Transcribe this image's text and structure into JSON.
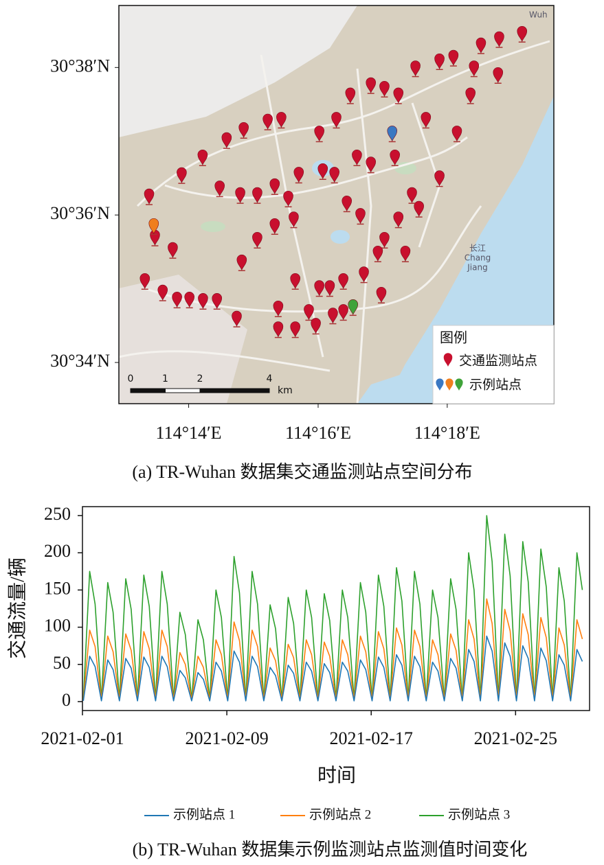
{
  "chart_data": [
    {
      "type": "map",
      "caption": "(a) TR-Wuhan 数据集交通监测站点空间分布",
      "xlim": [
        114.2153,
        114.3275
      ],
      "ylim": [
        30.5574,
        30.6473
      ],
      "xticks": [
        {
          "value": 114.2333,
          "label": "114°14′E"
        },
        {
          "value": 114.2667,
          "label": "114°16′E"
        },
        {
          "value": 114.3,
          "label": "114°18′E"
        }
      ],
      "yticks": [
        {
          "value": 30.6333,
          "label": "30°38′N"
        },
        {
          "value": 30.6,
          "label": "30°36′N"
        },
        {
          "value": 30.5667,
          "label": "30°34′N"
        }
      ],
      "legend_title": "图例",
      "map_labels": [
        "Wuh",
        "长江",
        "Chang",
        "Jiang"
      ],
      "scale_bar": {
        "ticks": [
          0,
          1,
          2,
          4
        ],
        "unit": "km"
      },
      "series": [
        {
          "name": "交通监测站点",
          "color": "#c8102e",
          "x": [
            114.2231,
            114.2246,
            114.2292,
            114.222,
            114.2266,
            114.2303,
            114.2335,
            114.237,
            114.2406,
            114.2315,
            114.2369,
            114.2431,
            114.2475,
            114.2537,
            114.2572,
            114.2413,
            114.2466,
            114.251,
            114.2555,
            114.259,
            114.2617,
            114.2679,
            114.2709,
            114.2741,
            114.2776,
            114.267,
            114.2714,
            114.275,
            114.2803,
            114.2838,
            114.2874,
            114.2918,
            114.298,
            114.3016,
            114.3087,
            114.3134,
            114.3193,
            114.3069,
            114.3131,
            114.306,
            114.3025,
            114.298,
            114.2927,
            114.2874,
            114.2838,
            114.2892,
            114.2821,
            114.2785,
            114.2732,
            114.2697,
            114.267,
            114.2608,
            114.2564,
            114.2643,
            114.2661,
            114.2564,
            114.2608,
            114.2705,
            114.2732,
            114.2457,
            114.247,
            114.251,
            114.2555,
            114.2604,
            114.2803,
            114.2865,
            114.2767,
            114.283,
            114.2945,
            114.2909
          ],
          "y": [
            30.6025,
            30.5932,
            30.5904,
            30.5834,
            30.5808,
            30.5792,
            30.5792,
            30.5789,
            30.5789,
            30.6073,
            30.6113,
            30.6152,
            30.6175,
            30.6194,
            30.6198,
            30.6043,
            30.6028,
            30.6028,
            30.6048,
            30.602,
            30.6074,
            30.6082,
            30.6074,
            30.6009,
            30.5981,
            30.6167,
            30.6198,
            30.6253,
            30.6276,
            30.6268,
            30.6253,
            30.6314,
            30.633,
            30.6338,
            30.6366,
            30.638,
            30.6392,
            30.6314,
            30.6299,
            30.6253,
            30.6167,
            30.6066,
            30.5997,
            30.5973,
            30.5927,
            30.5896,
            30.5896,
            30.5849,
            30.5834,
            30.5818,
            30.5818,
            30.5834,
            30.5772,
            30.5764,
            30.5733,
            30.5725,
            30.5725,
            30.5756,
            30.5764,
            30.5749,
            30.5876,
            30.5927,
            30.5958,
            30.5973,
            30.6097,
            30.6113,
            30.6113,
            30.5803,
            30.6198,
            30.6028
          ]
        },
        {
          "name": "示例站点",
          "colors": [
            "#3a78c2",
            "#f07f1e",
            "#3fa33a"
          ],
          "x": [
            114.2858,
            114.2243,
            114.2757
          ],
          "y": [
            30.6167,
            30.5958,
            30.5775
          ]
        }
      ]
    },
    {
      "type": "line",
      "caption": "(b) TR-Wuhan 数据集示例监测站点监测值时间变化",
      "xlabel": "时间",
      "ylabel": "交通流量/辆",
      "xlim": [
        0,
        28.1
      ],
      "ylim": [
        -12,
        262
      ],
      "xticks": [
        {
          "value": 0,
          "label": "2021-02-01"
        },
        {
          "value": 8,
          "label": "2021-02-09"
        },
        {
          "value": 16,
          "label": "2021-02-17"
        },
        {
          "value": 24,
          "label": "2021-02-25"
        }
      ],
      "yticks": [
        0,
        50,
        100,
        150,
        200,
        250
      ],
      "legend": "bottom",
      "x": [
        0.05,
        0.4,
        0.7,
        1.05,
        1.4,
        1.7,
        2.05,
        2.4,
        2.7,
        3.05,
        3.4,
        3.7,
        4.05,
        4.4,
        4.7,
        5.05,
        5.4,
        5.7,
        6.05,
        6.4,
        6.7,
        7.05,
        7.4,
        7.7,
        8.05,
        8.4,
        8.7,
        9.05,
        9.4,
        9.7,
        10.05,
        10.4,
        10.7,
        11.05,
        11.4,
        11.7,
        12.05,
        12.4,
        12.7,
        13.05,
        13.4,
        13.7,
        14.05,
        14.4,
        14.7,
        15.05,
        15.4,
        15.7,
        16.05,
        16.4,
        16.7,
        17.05,
        17.4,
        17.7,
        18.05,
        18.4,
        18.7,
        19.05,
        19.4,
        19.7,
        20.05,
        20.4,
        20.7,
        21.05,
        21.4,
        21.7,
        22.05,
        22.4,
        22.7,
        23.05,
        23.4,
        23.7,
        24.05,
        24.4,
        24.7,
        25.05,
        25.4,
        25.7,
        26.05,
        26.4,
        26.7,
        27.05,
        27.4,
        27.7
      ],
      "series": [
        {
          "name": "示例站点 1",
          "color": "#1f77b4",
          "values": [
            1,
            61,
            47,
            1,
            56,
            43,
            1,
            58,
            45,
            1,
            60,
            46,
            1,
            61,
            47,
            1,
            42,
            32,
            1,
            39,
            30,
            1,
            53,
            41,
            1,
            68,
            53,
            1,
            61,
            47,
            1,
            46,
            35,
            1,
            49,
            38,
            1,
            53,
            41,
            1,
            51,
            39,
            1,
            53,
            41,
            1,
            56,
            43,
            1,
            60,
            46,
            1,
            63,
            49,
            1,
            61,
            47,
            1,
            53,
            41,
            1,
            58,
            45,
            1,
            70,
            54,
            1,
            88,
            68,
            1,
            79,
            61,
            1,
            75,
            58,
            1,
            72,
            55,
            1,
            63,
            49,
            1,
            70,
            54
          ]
        },
        {
          "name": "示例站点 2",
          "color": "#ff7f0e",
          "values": [
            2,
            96,
            74,
            2,
            88,
            67,
            2,
            91,
            69,
            2,
            94,
            71,
            2,
            96,
            74,
            2,
            66,
            50,
            2,
            61,
            46,
            2,
            83,
            63,
            2,
            107,
            82,
            2,
            96,
            74,
            2,
            72,
            55,
            2,
            77,
            59,
            2,
            83,
            63,
            2,
            80,
            61,
            2,
            83,
            63,
            2,
            88,
            67,
            2,
            94,
            71,
            2,
            99,
            76,
            2,
            96,
            74,
            2,
            83,
            63,
            2,
            91,
            69,
            2,
            110,
            84,
            2,
            138,
            105,
            2,
            124,
            95,
            2,
            118,
            90,
            2,
            113,
            86,
            2,
            99,
            76,
            2,
            110,
            84
          ]
        },
        {
          "name": "示例站点 3",
          "color": "#2ca02c",
          "values": [
            3,
            175,
            131,
            3,
            160,
            120,
            3,
            165,
            124,
            3,
            170,
            128,
            3,
            175,
            131,
            3,
            120,
            90,
            3,
            110,
            83,
            3,
            150,
            113,
            3,
            195,
            146,
            3,
            175,
            131,
            3,
            130,
            98,
            3,
            140,
            105,
            3,
            150,
            113,
            3,
            145,
            109,
            3,
            150,
            113,
            3,
            160,
            120,
            3,
            170,
            128,
            3,
            180,
            135,
            3,
            175,
            131,
            3,
            150,
            113,
            3,
            165,
            124,
            3,
            200,
            150,
            3,
            250,
            188,
            3,
            225,
            169,
            3,
            215,
            161,
            3,
            205,
            154,
            3,
            180,
            135,
            3,
            200,
            150
          ]
        }
      ]
    }
  ]
}
